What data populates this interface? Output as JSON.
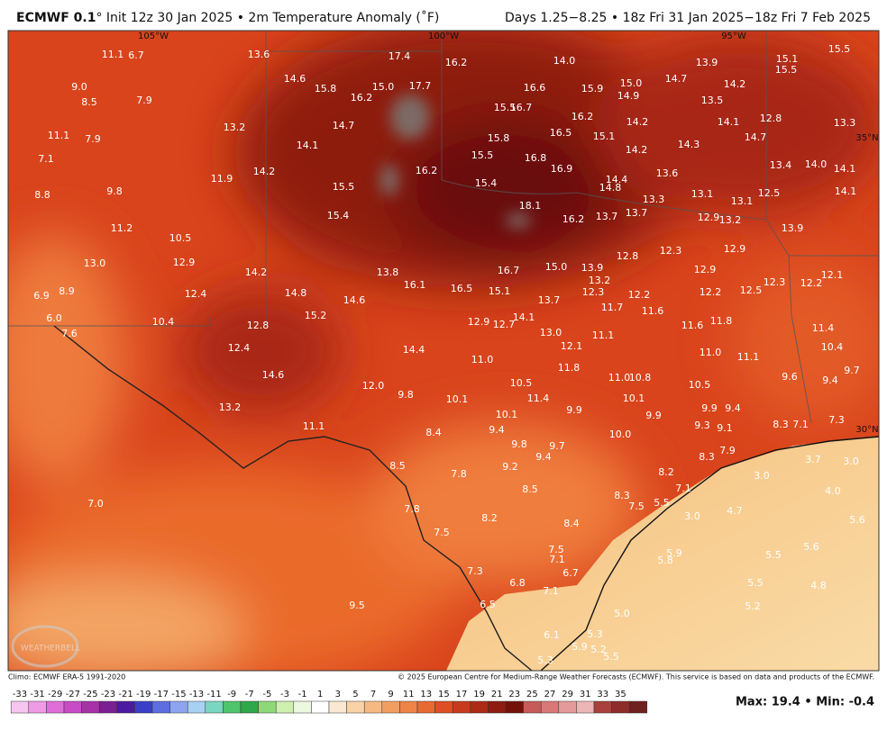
{
  "header": {
    "title_bold": "ECMWF 0.1",
    "title_rest": "° Init 12z 30 Jan 2025 • 2m Temperature Anomaly (˚F)",
    "valid": "Days 1.25−8.25 • 18z Fri 31 Jan 2025−18z Fri 7 Feb 2025"
  },
  "map": {
    "grid_labels": [
      "105°W",
      "100°W",
      "95°W",
      "35°N",
      "30°N"
    ],
    "watermark": "WEATHERBELL",
    "values": [
      "11.1",
      "6.7",
      "13.6",
      "17.4",
      "16.2",
      "14.0",
      "13.9",
      "14.7",
      "15.1",
      "15.5",
      "15.5",
      "9.0",
      "14.6",
      "15.8",
      "16.2",
      "15.0",
      "17.7",
      "16.6",
      "15.9",
      "15.0",
      "14.9",
      "14.2",
      "8.5",
      "7.9",
      "15.5",
      "16.7",
      "13.5",
      "12.8",
      "13.3",
      "11.1",
      "7.9",
      "13.2",
      "14.7",
      "16.2",
      "14.2",
      "14.1",
      "14.1",
      "15.8",
      "16.5",
      "15.1",
      "14.7",
      "7.1",
      "15.5",
      "16.8",
      "14.2",
      "14.3",
      "14.2",
      "16.2",
      "16.9",
      "13.4",
      "14.0",
      "14.1",
      "11.9",
      "13.6",
      "14.4",
      "14.8",
      "8.8",
      "9.8",
      "15.5",
      "15.4",
      "13.1",
      "12.5",
      "14.1",
      "13.3",
      "13.1",
      "18.1",
      "15.4",
      "16.2",
      "13.7",
      "13.7",
      "12.9",
      "13.2",
      "13.9",
      "11.2",
      "10.5",
      "12.3",
      "12.9",
      "13.0",
      "12.9",
      "12.8",
      "16.7",
      "15.0",
      "13.9",
      "14.2",
      "13.8",
      "12.9",
      "12.1",
      "6.9",
      "8.9",
      "12.4",
      "14.8",
      "16.1",
      "16.5",
      "15.1",
      "13.2",
      "12.3",
      "12.2",
      "12.3",
      "12.2",
      "12.2",
      "12.5",
      "14.6",
      "13.7",
      "11.7",
      "11.6",
      "6.0",
      "15.2",
      "12.9",
      "12.7",
      "14.1",
      "11.6",
      "11.8",
      "10.4",
      "12.8",
      "13.0",
      "11.1",
      "11.4",
      "7.6",
      "14.4",
      "12.4",
      "12.1",
      "11.0",
      "11.1",
      "10.4",
      "11.0",
      "11.8",
      "14.6",
      "12.0",
      "9.8",
      "10.5",
      "11.0",
      "10.8",
      "10.5",
      "9.6",
      "9.7",
      "9.4",
      "10.1",
      "11.4",
      "10.1",
      "13.2",
      "9.9",
      "9.9",
      "9.4",
      "10.1",
      "9.9",
      "8.3",
      "7.1",
      "7.3",
      "11.1",
      "9.4",
      "9.3",
      "9.1",
      "8.4",
      "10.0",
      "9.8",
      "9.7",
      "7.9",
      "9.4",
      "8.3",
      "8.5",
      "9.2",
      "8.2",
      "3.0",
      "3.7",
      "3.0",
      "7.8",
      "7.1",
      "4.0",
      "8.5",
      "8.3",
      "7.0",
      "7.8",
      "7.5",
      "5.5",
      "4.7",
      "3.0",
      "5.6",
      "8.2",
      "8.4",
      "7.5",
      "7.5",
      "5.6",
      "5.9",
      "5.5",
      "7.1",
      "5.8",
      "6.7",
      "7.3",
      "6.8",
      "5.5",
      "4.8",
      "7.1",
      "5.2",
      "6.5",
      "9.5",
      "5.0",
      "6.1",
      "5.3",
      "5.9",
      "5.2",
      "5.5",
      "5.3"
    ]
  },
  "footer": {
    "climo": "Climo: ECMWF ERA-5 1991-2020",
    "copyright": "© 2025 European Centre for Medium-Range Weather Forecasts (ECMWF). This service is based on data and products of the ECMWF."
  },
  "colorbar": {
    "ticks": [
      -33,
      -31,
      -29,
      -27,
      -25,
      -23,
      -21,
      -19,
      -17,
      -15,
      -13,
      -11,
      -9,
      -7,
      -5,
      -3,
      -1,
      1,
      3,
      5,
      7,
      9,
      11,
      13,
      15,
      17,
      19,
      21,
      23,
      25,
      27,
      29,
      31,
      33,
      35
    ]
  },
  "stats": "Max: 19.4 • Min: -0.4"
}
